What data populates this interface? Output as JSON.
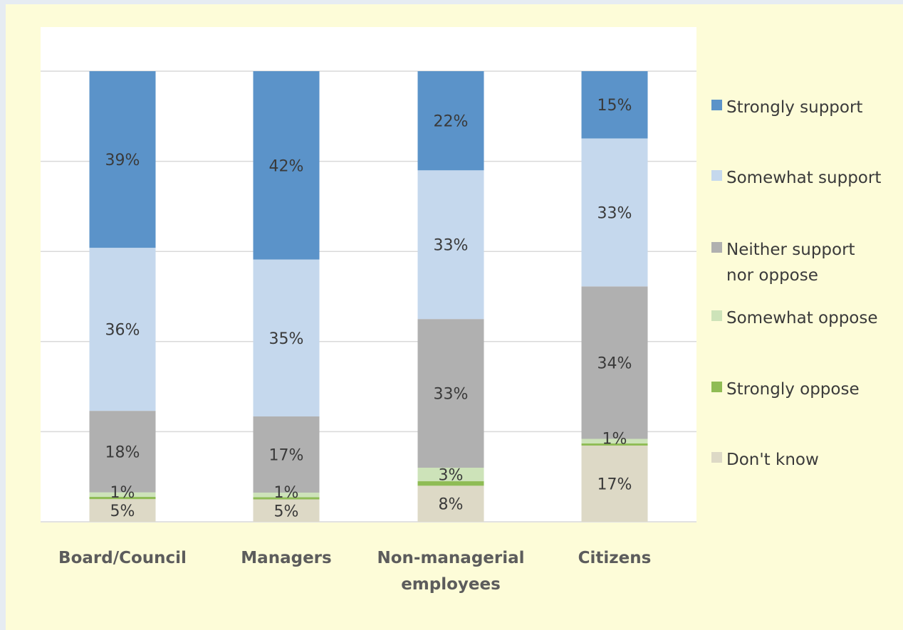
{
  "chart_data": {
    "type": "bar",
    "stacked": true,
    "percent": true,
    "categories": [
      [
        "Board/Council"
      ],
      [
        "Managers"
      ],
      [
        "Non-managerial",
        "employees"
      ],
      [
        "Citizens"
      ]
    ],
    "series": [
      {
        "name": "Don't know",
        "legend_lines": [
          "Don't know"
        ],
        "color": "#ddd9c6",
        "values": [
          5,
          5,
          8,
          17
        ]
      },
      {
        "name": "Strongly oppose",
        "legend_lines": [
          "Strongly oppose"
        ],
        "color": "#8fbc55",
        "values": [
          0.5,
          0.5,
          1,
          0.5
        ]
      },
      {
        "name": "Somewhat oppose",
        "legend_lines": [
          "Somewhat oppose"
        ],
        "color": "#cde3b9",
        "values": [
          1,
          1,
          3,
          1
        ]
      },
      {
        "name": "Neither support nor oppose",
        "legend_lines": [
          "Neither support",
          "nor oppose"
        ],
        "color": "#b0b0b0",
        "values": [
          18,
          17,
          33,
          34
        ]
      },
      {
        "name": "Somewhat support",
        "legend_lines": [
          "Somewhat support"
        ],
        "color": "#c5d8ed",
        "values": [
          36,
          35,
          33,
          33
        ]
      },
      {
        "name": "Strongly support",
        "legend_lines": [
          "Strongly support"
        ],
        "color": "#5b93c9",
        "values": [
          39,
          42,
          22,
          15
        ]
      }
    ],
    "data_labels": [
      [
        [
          "5%"
        ],
        [
          "1%"
        ],
        [
          "18%"
        ],
        [
          "36%"
        ],
        [
          "39%"
        ]
      ],
      [
        [
          "5%"
        ],
        [
          "1%"
        ],
        [
          "17%"
        ],
        [
          "35%"
        ],
        [
          "42%"
        ]
      ],
      [
        [
          "8%"
        ],
        [
          ""
        ],
        [
          "3%"
        ],
        [
          "33%"
        ],
        [
          "33%"
        ],
        [
          "22%"
        ]
      ],
      [
        [
          "17%"
        ],
        [
          "1%"
        ],
        [
          "34%"
        ],
        [
          "33%"
        ],
        [
          "15%"
        ]
      ]
    ],
    "legend_order": [
      "Strongly support",
      "Somewhat support",
      "Neither support nor oppose",
      "Somewhat oppose",
      "Strongly oppose",
      "Don't know"
    ],
    "ylim": [
      0,
      100
    ],
    "grid": true,
    "legend_position": "right"
  }
}
